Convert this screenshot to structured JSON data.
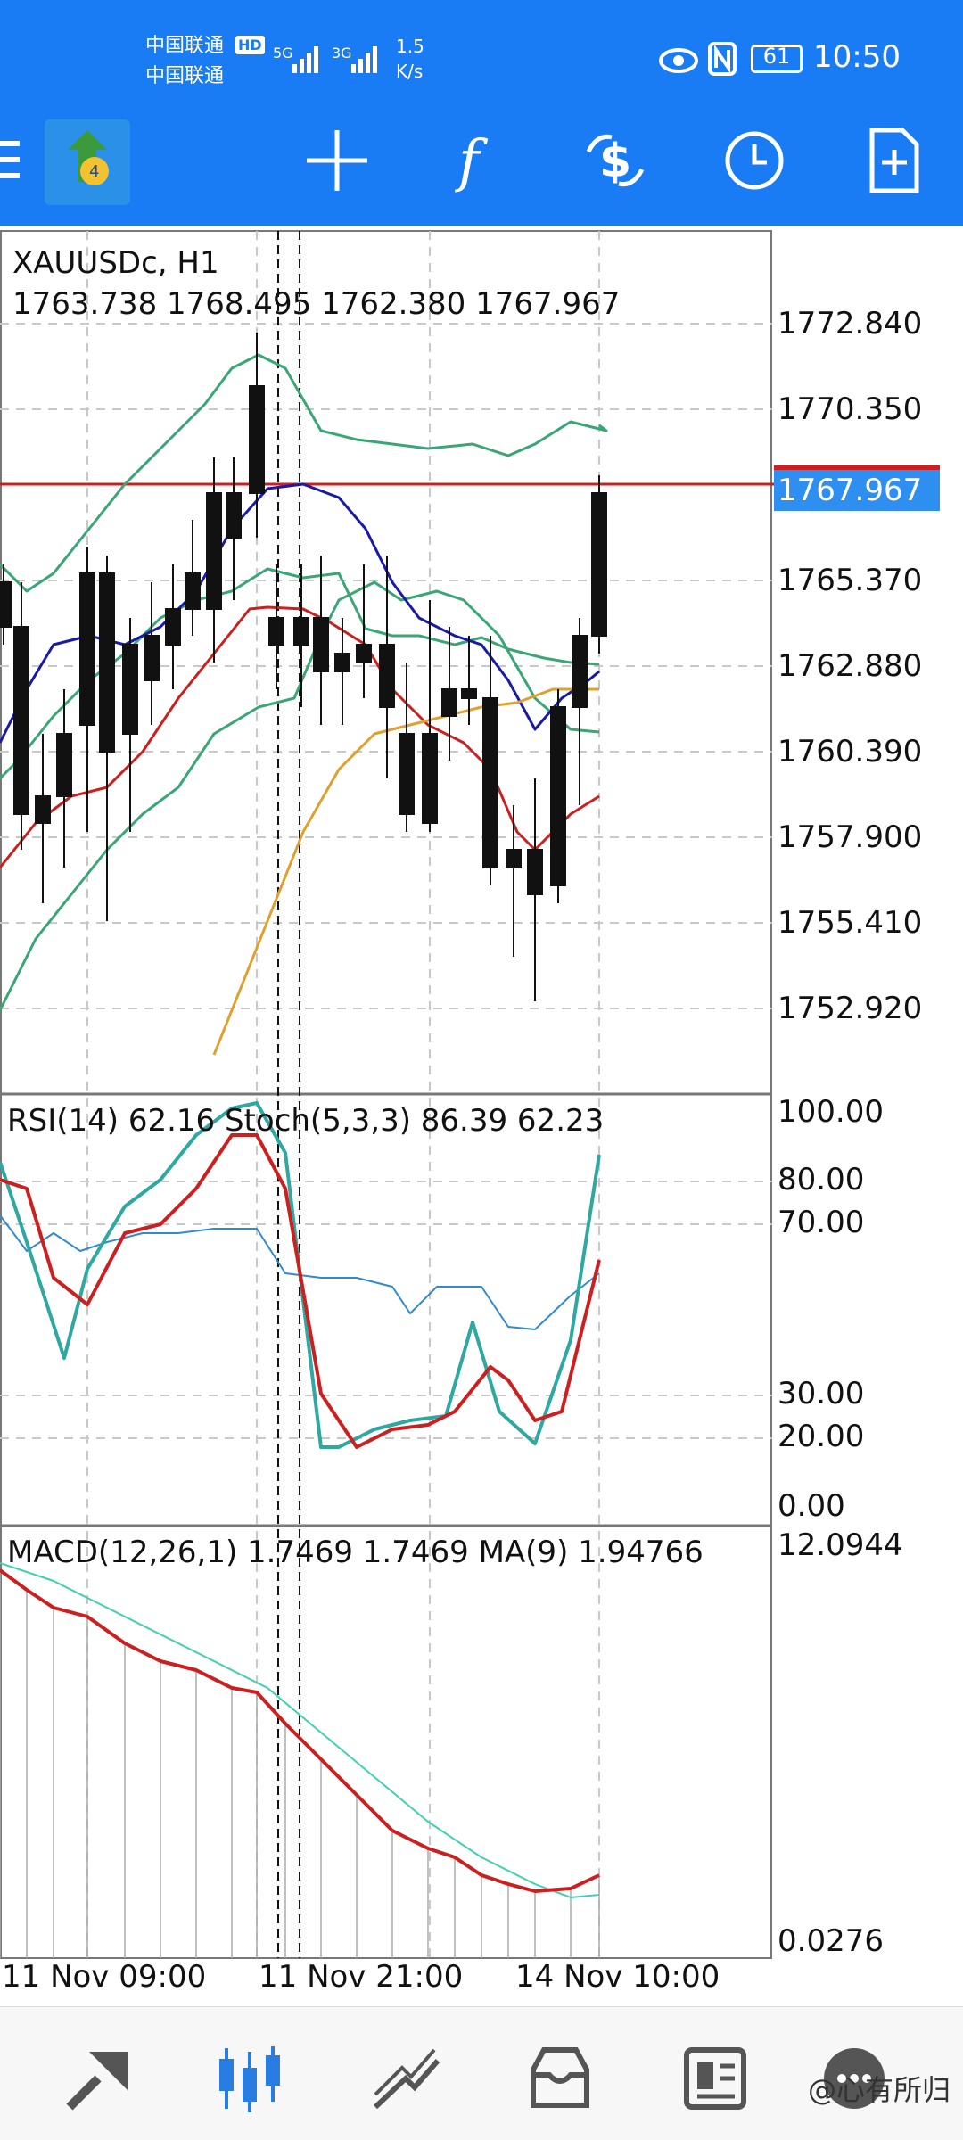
{
  "status_bar": {
    "carrier_1": "中国联通",
    "hd_badge": "HD",
    "carrier_2": "中国联通",
    "net_1": "5G",
    "net_2": "3G",
    "speed_value": "1.5",
    "speed_unit": "K/s",
    "battery": "61",
    "time": "10:50"
  },
  "toolbar": {
    "icons": [
      "app-logo-icon",
      "crosshair-icon",
      "indicators-icon",
      "symbol-change-icon",
      "timeframe-clock-icon",
      "new-order-icon"
    ]
  },
  "chart": {
    "symbol_line": "XAUUSDc, H1",
    "ohlc_line": "1763.738 1768.495 1762.380 1767.967",
    "price_ticks": [
      "1772.840",
      "1770.350",
      "1767.967",
      "1765.370",
      "1762.880",
      "1760.390",
      "1757.900",
      "1755.410",
      "1752.920"
    ],
    "current_price": "1767.967",
    "rsi_stoch_label": "RSI(14) 62.16 Stoch(5,3,3) 86.39 62.23",
    "osc_ticks": [
      "100.00",
      "80.00",
      "70.00",
      "30.00",
      "20.00",
      "0.00"
    ],
    "macd_label": "MACD(12,26,1) 1.7469 1.7469 MA(9) 1.94766",
    "macd_ticks": [
      "12.0944",
      "0.0276"
    ],
    "time_ticks": [
      "11 Nov 09:00",
      "11 Nov 21:00",
      "14 Nov 10:00"
    ],
    "colors": {
      "bollinger": "#3aa676",
      "ma_blue": "#1a1aa8",
      "ma_red": "#cc1f1f",
      "ma_orange": "#e0a030",
      "rsi": "#2f8ad0",
      "stoch_main": "#2ea8a0",
      "stoch_signal": "#cc1f1f",
      "macd": "#cc1f1f",
      "macd_signal": "#40d0b0",
      "price_line": "#cc1f1f"
    }
  },
  "bottom_nav": {
    "items": [
      "quotes-icon",
      "chart-icon",
      "trade-icon",
      "history-icon",
      "news-icon",
      "messages-icon"
    ],
    "watermark": "@心有所归"
  }
}
